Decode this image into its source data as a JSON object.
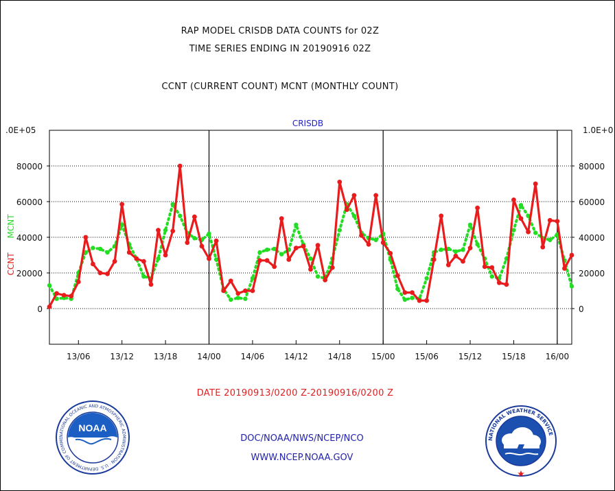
{
  "titles": {
    "line1": "RAP MODEL CRISDB DATA COUNTS for 02Z",
    "line2": "TIME SERIES ENDING IN 20190916 02Z",
    "line3": "CCNT (CURRENT COUNT) MCNT (MONTHLY COUNT)"
  },
  "footer": {
    "date_range": "DATE 20190913/0200 Z-20190916/0200 Z",
    "org": "DOC/NOAA/NWS/NCEP/NCO",
    "url": "WWW.NCEP.NOAA.GOV",
    "noaa_logo_text": "NOAA",
    "noaa_ring_text": "NATIONAL OCEANIC AND ATMOSPHERIC ADMINISTRATION · U.S. DEPARTMENT OF COMMERCE",
    "nws_ring_text": "NATIONAL WEATHER SERVICE"
  },
  "colors": {
    "ccnt": "#e81c1c",
    "mcnt": "#22dd22",
    "panel_label": "#2222cc",
    "grid": "#000000"
  },
  "chart_data": {
    "type": "line",
    "panel_label": "CRISDB",
    "ylabel_left": "CCNT",
    "ylabel_left2": "MCNT",
    "ylim": [
      -20000,
      100000
    ],
    "y_ticks": [
      0,
      20000,
      40000,
      60000,
      80000
    ],
    "y_tick_labels": [
      "0",
      "20000",
      "40000",
      "60000",
      "80000"
    ],
    "y_top_label_left": ".0E+05",
    "y_top_label_right": "1.0E+0",
    "x_ticks": [
      {
        "hour": 4,
        "label": "13/06"
      },
      {
        "hour": 10,
        "label": "13/12"
      },
      {
        "hour": 16,
        "label": "13/18"
      },
      {
        "hour": 22,
        "label": "14/00"
      },
      {
        "hour": 28,
        "label": "14/06"
      },
      {
        "hour": 34,
        "label": "14/12"
      },
      {
        "hour": 40,
        "label": "14/18"
      },
      {
        "hour": 46,
        "label": "15/00"
      },
      {
        "hour": 52,
        "label": "15/06"
      },
      {
        "hour": 58,
        "label": "15/12"
      },
      {
        "hour": 64,
        "label": "15/18"
      },
      {
        "hour": 70,
        "label": "16/00"
      }
    ],
    "x_range_hours": [
      0,
      72
    ],
    "day_boundaries_hours": [
      22,
      46,
      70
    ],
    "series": [
      {
        "name": "CCNT",
        "values": [
          1000,
          8500,
          7500,
          7000,
          15000,
          40000,
          25000,
          20000,
          19500,
          26500,
          58500,
          31500,
          28000,
          26500,
          13500,
          44000,
          30000,
          43500,
          80000,
          37000,
          51500,
          35000,
          28000,
          38000,
          10000,
          15500,
          8500,
          10000,
          10000,
          27000,
          27000,
          23500,
          50500,
          27500,
          34000,
          35000,
          22000,
          35500,
          16000,
          23000,
          71000,
          55500,
          63500,
          41000,
          36000,
          63500,
          37000,
          31000,
          18500,
          9000,
          9000,
          4500,
          4500,
          27500,
          52000,
          24500,
          29500,
          26500,
          34000,
          56500,
          23500,
          23000,
          14500,
          13500,
          61000,
          50500,
          43000,
          70000,
          34500,
          49500,
          49000,
          22500,
          30000
        ]
      },
      {
        "name": "MCNT",
        "values": [
          13000,
          5500,
          6000,
          5500,
          20000,
          31500,
          34000,
          33500,
          31500,
          35000,
          47000,
          36000,
          28000,
          18000,
          17000,
          28000,
          44000,
          58500,
          52000,
          42500,
          39500,
          38500,
          42000,
          27500,
          11000,
          5000,
          6000,
          5500,
          17000,
          31500,
          33000,
          33500,
          30500,
          33000,
          47000,
          36000,
          28000,
          18000,
          17000,
          28000,
          44000,
          58500,
          52000,
          42500,
          39500,
          38500,
          42000,
          27500,
          11000,
          5000,
          6000,
          5500,
          17000,
          31500,
          33000,
          33500,
          32000,
          33000,
          47000,
          36000,
          28000,
          18000,
          17000,
          28000,
          44000,
          58000,
          52000,
          42500,
          39500,
          38500,
          41500,
          27000,
          12500
        ]
      }
    ]
  }
}
